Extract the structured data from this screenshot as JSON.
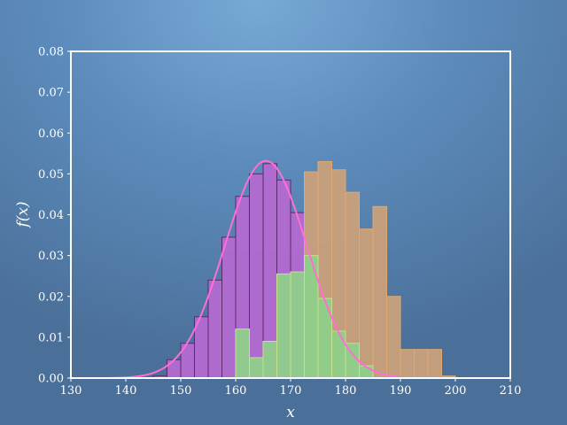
{
  "chart_data": {
    "type": "bar",
    "xlabel": "x",
    "ylabel": "f(x)",
    "xlim": [
      130,
      210
    ],
    "ylim": [
      0,
      0.08
    ],
    "grid": false,
    "legend": "none",
    "xticks": [
      "130",
      "140",
      "150",
      "160",
      "170",
      "180",
      "190",
      "200",
      "210"
    ],
    "yticks": [
      "0.00",
      "0.01",
      "0.02",
      "0.03",
      "0.04",
      "0.05",
      "0.06",
      "0.07",
      "0.08"
    ],
    "colors": {
      "purple_fill": "#b36ad0",
      "purple_edge": "#5a2a6a",
      "orange_fill": "#c9a07a",
      "orange_edge": "#e0a870",
      "green_fill": "#8fcf8a",
      "green_edge": "#c8e08a",
      "curve": "#ff6ed6",
      "frame": "#ffffff"
    },
    "series": [
      {
        "color_key": "purple",
        "bin_width": 2.5,
        "bins": [
          {
            "x0": 145.0,
            "density": 0.0005
          },
          {
            "x0": 147.5,
            "density": 0.0045
          },
          {
            "x0": 150.0,
            "density": 0.0085
          },
          {
            "x0": 152.5,
            "density": 0.015
          },
          {
            "x0": 155.0,
            "density": 0.024
          },
          {
            "x0": 157.5,
            "density": 0.0345
          },
          {
            "x0": 160.0,
            "density": 0.0445
          },
          {
            "x0": 162.5,
            "density": 0.05
          },
          {
            "x0": 165.0,
            "density": 0.0525
          },
          {
            "x0": 167.5,
            "density": 0.0485
          },
          {
            "x0": 170.0,
            "density": 0.0405
          },
          {
            "x0": 172.5,
            "density": 0.03
          }
        ]
      },
      {
        "color_key": "orange",
        "bin_width": 2.5,
        "bins": [
          {
            "x0": 172.5,
            "density": 0.0505
          },
          {
            "x0": 175.0,
            "density": 0.053
          },
          {
            "x0": 177.5,
            "density": 0.051
          },
          {
            "x0": 180.0,
            "density": 0.0455
          },
          {
            "x0": 182.5,
            "density": 0.0365
          },
          {
            "x0": 185.0,
            "density": 0.042
          },
          {
            "x0": 187.5,
            "density": 0.02
          },
          {
            "x0": 190.0,
            "density": 0.007
          },
          {
            "x0": 192.5,
            "density": 0.007
          },
          {
            "x0": 195.0,
            "density": 0.007
          },
          {
            "x0": 197.5,
            "density": 0.0005
          }
        ]
      },
      {
        "color_key": "green",
        "bin_width": 2.5,
        "bins": [
          {
            "x0": 160.0,
            "density": 0.012
          },
          {
            "x0": 162.5,
            "density": 0.005
          },
          {
            "x0": 165.0,
            "density": 0.009
          },
          {
            "x0": 167.5,
            "density": 0.0255
          },
          {
            "x0": 170.0,
            "density": 0.026
          },
          {
            "x0": 172.5,
            "density": 0.03
          },
          {
            "x0": 175.0,
            "density": 0.0195
          },
          {
            "x0": 177.5,
            "density": 0.0115
          },
          {
            "x0": 180.0,
            "density": 0.0085
          },
          {
            "x0": 182.5,
            "density": 0.003
          }
        ]
      }
    ],
    "curve": {
      "kind": "normal_pdf",
      "mean": 165.5,
      "std": 7.5,
      "x_range": [
        137,
        200
      ]
    }
  }
}
